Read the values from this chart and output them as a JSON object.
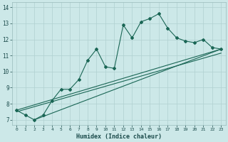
{
  "title": "",
  "xlabel": "Humidex (Indice chaleur)",
  "ylabel": "",
  "bg_color": "#cce8e8",
  "grid_color": "#b0d0d0",
  "line_color": "#1a6655",
  "xlim": [
    -0.5,
    23.5
  ],
  "ylim": [
    6.7,
    14.3
  ],
  "xticks": [
    0,
    1,
    2,
    3,
    4,
    5,
    6,
    7,
    8,
    9,
    10,
    11,
    12,
    13,
    14,
    15,
    16,
    17,
    18,
    19,
    20,
    21,
    22,
    23
  ],
  "yticks": [
    7,
    8,
    9,
    10,
    11,
    12,
    13,
    14
  ],
  "line1_x": [
    0,
    1,
    2,
    3,
    4,
    5,
    6,
    7,
    8,
    9,
    10,
    11,
    12,
    13,
    14,
    15,
    16,
    17,
    18,
    19,
    20,
    21,
    22,
    23
  ],
  "line1_y": [
    7.6,
    7.3,
    7.0,
    7.3,
    8.2,
    8.9,
    8.9,
    9.5,
    10.7,
    11.4,
    10.3,
    10.2,
    12.9,
    12.1,
    13.1,
    13.3,
    13.6,
    12.7,
    12.1,
    11.9,
    11.8,
    12.0,
    11.5,
    11.4
  ],
  "line2_x": [
    0,
    23
  ],
  "line2_y": [
    7.6,
    11.4
  ],
  "line3_x": [
    0,
    23
  ],
  "line3_y": [
    7.5,
    11.15
  ],
  "line4_x": [
    2,
    23
  ],
  "line4_y": [
    7.0,
    11.4
  ]
}
